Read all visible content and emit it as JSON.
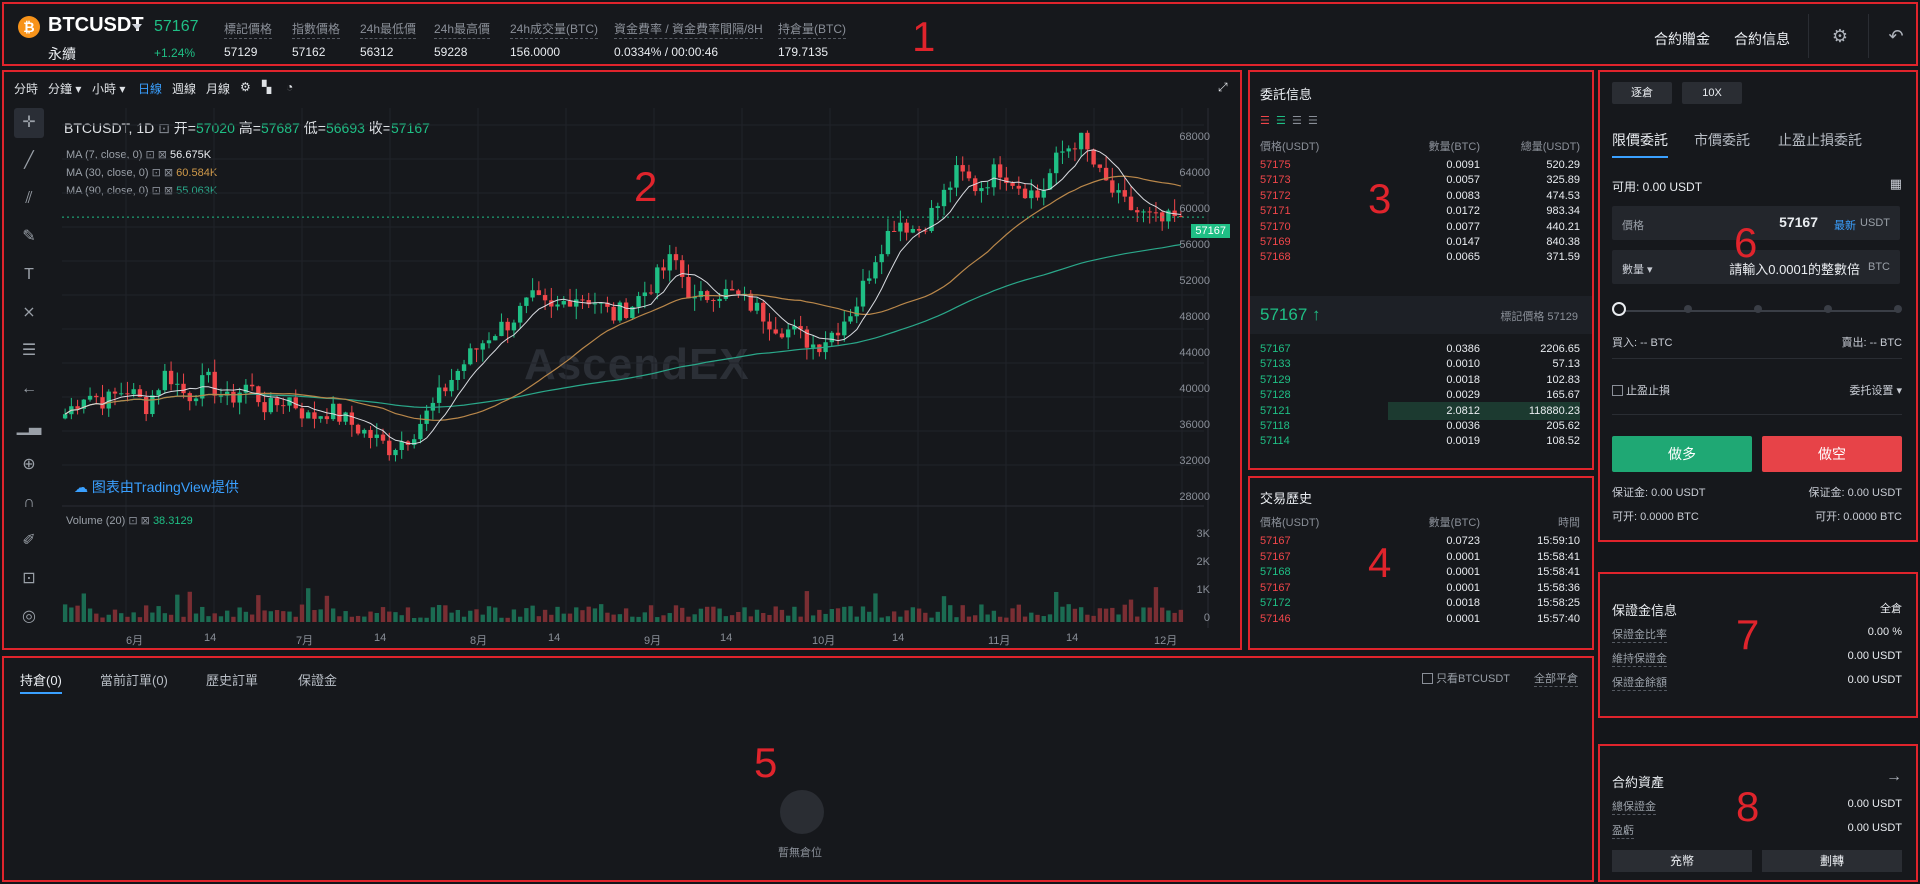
{
  "header": {
    "symbol": "BTCUSDT",
    "contract_type": "永續",
    "last_price": "57167",
    "change_pct": "+1.24%",
    "stats": [
      {
        "label": "標記價格",
        "value": "57129"
      },
      {
        "label": "指數價格",
        "value": "57162"
      },
      {
        "label": "24h最低價",
        "value": "56312"
      },
      {
        "label": "24h最高價",
        "value": "59228"
      },
      {
        "label": "24h成交量(BTC)",
        "value": "156.0000"
      },
      {
        "label": "資金費率 / 資金費率間隔/8H",
        "value": "0.0334% / 00:00:46"
      },
      {
        "label": "持倉量(BTC)",
        "value": "179.7135"
      }
    ],
    "links": [
      "合約贈金",
      "合約信息"
    ]
  },
  "toolbar": {
    "intervals": [
      "分時",
      "分鐘",
      "小時",
      "日線",
      "週線",
      "月線"
    ],
    "active_interval": "日線"
  },
  "chart": {
    "title": "BTCUSDT, 1D",
    "ohlc": {
      "open_label": "开=",
      "open": "57020",
      "high_label": "高=",
      "high": "57687",
      "low_label": "低=",
      "low": "56693",
      "close_label": "收=",
      "close": "57167"
    },
    "ma": [
      {
        "label": "MA (7, close, 0)",
        "value": "56.675K",
        "color": "#e9ecf0"
      },
      {
        "label": "MA (30, close, 0)",
        "value": "60.584K",
        "color": "#d09a4a"
      },
      {
        "label": "MA (90, close, 0)",
        "value": "55.063K",
        "color": "#2aa88a"
      }
    ],
    "credit": "图表由TradingView提供",
    "watermark": "AscendEX",
    "volume_label": "Volume (20)",
    "volume_value": "38.3129",
    "price_tag": "57167",
    "y_ticks": [
      "68000",
      "64000",
      "60000",
      "56000",
      "52000",
      "48000",
      "44000",
      "40000",
      "36000",
      "32000",
      "28000"
    ],
    "vol_ticks": [
      "3K",
      "2K",
      "1K",
      "0"
    ],
    "x_ticks": [
      "6月",
      "14",
      "7月",
      "14",
      "8月",
      "14",
      "9月",
      "14",
      "10月",
      "14",
      "11月",
      "14",
      "12月"
    ]
  },
  "chart_data": {
    "type": "candlestick",
    "title": "BTCUSDT, 1D",
    "ylim": [
      26000,
      70000
    ],
    "y_ticks": [
      28000,
      32000,
      36000,
      40000,
      44000,
      48000,
      52000,
      56000,
      60000,
      64000,
      68000
    ],
    "x_ticks": [
      "6月",
      "14",
      "7月",
      "14",
      "8月",
      "14",
      "9月",
      "14",
      "10月",
      "14",
      "11月",
      "14",
      "12月"
    ],
    "series": [
      {
        "name": "MA (7, close, 0)",
        "last": 56675
      },
      {
        "name": "MA (30, close, 0)",
        "last": 60584
      },
      {
        "name": "MA (90, close, 0)",
        "last": 55063
      },
      {
        "name": "Volume (20)",
        "last": 38.3129
      }
    ],
    "close_trend": [
      34000,
      36500,
      35500,
      37000,
      35000,
      39000,
      36000,
      38000,
      35500,
      37500,
      34500,
      36000,
      33500,
      34500,
      33000,
      31500,
      30000,
      31500,
      34500,
      38000,
      41000,
      43500,
      45000,
      47500,
      46000,
      48000,
      47500,
      45500,
      47000,
      49500,
      52500,
      47000,
      48500,
      48000,
      46500,
      44500,
      43500,
      42000,
      44000,
      47000,
      53000,
      57000,
      55500,
      58500,
      62500,
      60500,
      63000,
      61000,
      59500,
      64500,
      66500,
      62000,
      59000,
      57500,
      56500,
      57167
    ]
  },
  "order_book": {
    "title": "委託信息",
    "headers": [
      "價格(USDT)",
      "數量(BTC)",
      "總量(USDT)"
    ],
    "asks": [
      [
        "57175",
        "0.0091",
        "520.29"
      ],
      [
        "57173",
        "0.0057",
        "325.89"
      ],
      [
        "57172",
        "0.0083",
        "474.53"
      ],
      [
        "57171",
        "0.0172",
        "983.34"
      ],
      [
        "57170",
        "0.0077",
        "440.21"
      ],
      [
        "57169",
        "0.0147",
        "840.38"
      ],
      [
        "57168",
        "0.0065",
        "371.59"
      ]
    ],
    "mid_price": "57167 ↑",
    "mark_label": "標記價格 57129",
    "bids": [
      [
        "57167",
        "0.0386",
        "2206.65"
      ],
      [
        "57133",
        "0.0010",
        "57.13"
      ],
      [
        "57129",
        "0.0018",
        "102.83"
      ],
      [
        "57128",
        "0.0029",
        "165.67"
      ],
      [
        "57121",
        "2.0812",
        "118880.23"
      ],
      [
        "57118",
        "0.0036",
        "205.62"
      ],
      [
        "57114",
        "0.0019",
        "108.52"
      ]
    ]
  },
  "trades": {
    "title": "交易歷史",
    "headers": [
      "價格(USDT)",
      "數量(BTC)",
      "時間"
    ],
    "rows": [
      {
        "price": "57167",
        "qty": "0.0723",
        "time": "15:59:10",
        "side": "sell"
      },
      {
        "price": "57167",
        "qty": "0.0001",
        "time": "15:58:41",
        "side": "sell"
      },
      {
        "price": "57168",
        "qty": "0.0001",
        "time": "15:58:41",
        "side": "buy"
      },
      {
        "price": "57167",
        "qty": "0.0001",
        "time": "15:58:36",
        "side": "sell"
      },
      {
        "price": "57172",
        "qty": "0.0018",
        "time": "15:58:25",
        "side": "buy"
      },
      {
        "price": "57146",
        "qty": "0.0001",
        "time": "15:57:40",
        "side": "sell"
      }
    ]
  },
  "positions": {
    "tabs": [
      "持倉(0)",
      "當前訂單(0)",
      "歷史訂單",
      "保證金"
    ],
    "only_current": "只看BTCUSDT",
    "close_all": "全部平倉",
    "empty": "暫無倉位"
  },
  "order_form": {
    "margin_mode": "逐倉",
    "leverage": "10X",
    "tabs": [
      "限價委託",
      "市價委託",
      "止盈止損委託"
    ],
    "available": "可用: 0.00 USDT",
    "price_label": "價格",
    "price_value": "57167",
    "latest": "最新",
    "price_unit": "USDT",
    "qty_label": "數量",
    "qty_placeholder": "請輸入0.0001的整數倍",
    "qty_unit": "BTC",
    "slider_value_pct": 0,
    "buy_est": "買入: -- BTC",
    "sell_est": "賣出: -- BTC",
    "tpsl": "止盈止損",
    "order_settings": "委托设置",
    "long": "做多",
    "short": "做空",
    "margin_long": "保证金: 0.00 USDT",
    "margin_short": "保证金: 0.00 USDT",
    "open_long": "可开: 0.0000 BTC",
    "open_short": "可开: 0.0000 BTC"
  },
  "margin_info": {
    "title": "保證金信息",
    "mode": "全倉",
    "rows": [
      {
        "label": "保證金比率",
        "value": "0.00 %"
      },
      {
        "label": "維持保證金",
        "value": "0.00 USDT"
      },
      {
        "label": "保證金餘額",
        "value": "0.00 USDT"
      }
    ]
  },
  "assets": {
    "title": "合約資產",
    "rows": [
      {
        "label": "總保證金",
        "value": "0.00 USDT"
      },
      {
        "label": "盈虧",
        "value": "0.00 USDT"
      }
    ],
    "deposit": "充幣",
    "transfer": "劃轉"
  },
  "annotations": [
    "1",
    "2",
    "3",
    "4",
    "5",
    "6",
    "7",
    "8"
  ],
  "colors": {
    "up": "#1fbf85",
    "down": "#f0464a",
    "accent": "#3aa0ff",
    "annotation": "#e0242c"
  }
}
